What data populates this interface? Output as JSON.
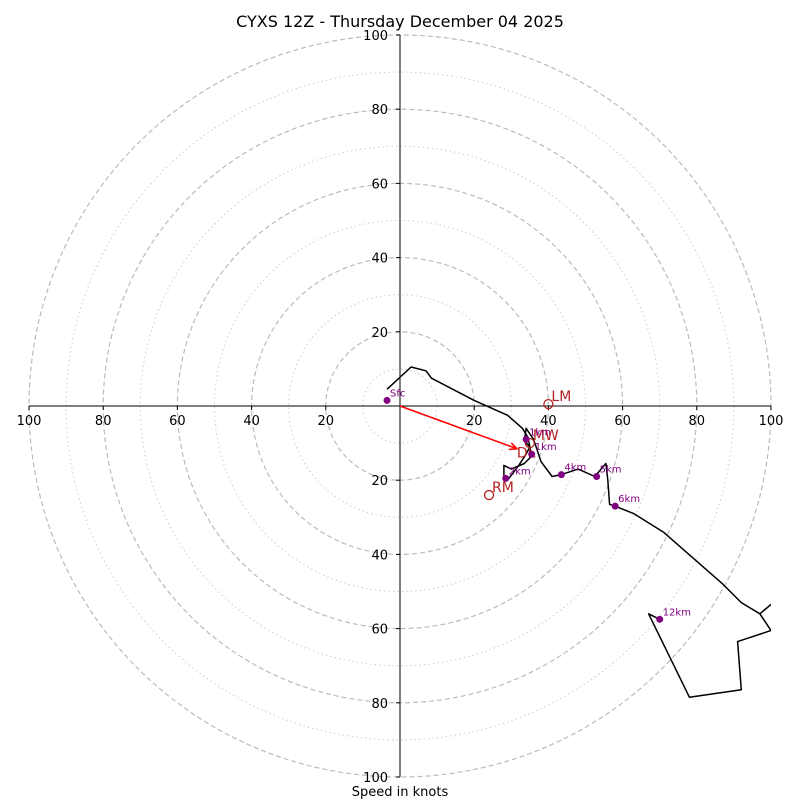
{
  "chart_data": {
    "type": "hodograph",
    "title": "CYXS 12Z - Thursday December 04 2025",
    "xlabel": "Speed in knots",
    "ring_speeds_major": [
      20,
      40,
      60,
      80,
      100
    ],
    "ring_speeds_minor": [
      10,
      30,
      50,
      70,
      90
    ],
    "x_tick_labels": [
      "100",
      "80",
      "60",
      "40",
      "20",
      "20",
      "40",
      "60",
      "80",
      "100"
    ],
    "x_tick_values": [
      -100,
      -80,
      -60,
      -40,
      -20,
      20,
      40,
      60,
      80,
      100
    ],
    "y_tick_labels": [
      "100",
      "80",
      "60",
      "40",
      "20",
      "20",
      "40",
      "60",
      "80",
      "100"
    ],
    "y_tick_values": [
      100,
      80,
      60,
      40,
      20,
      -20,
      -40,
      -60,
      -80,
      -100
    ],
    "range": [
      -100,
      100
    ],
    "hodograph_trace": [
      [
        -3.5,
        4.5
      ],
      [
        3,
        10.5
      ],
      [
        7,
        9.5
      ],
      [
        8.5,
        7.5
      ],
      [
        20,
        1.5
      ],
      [
        29,
        -2.5
      ],
      [
        33,
        -6
      ],
      [
        34.5,
        -8.5
      ],
      [
        35.5,
        -13.5
      ],
      [
        33.5,
        -15.5
      ],
      [
        30,
        -17
      ],
      [
        28,
        -16
      ],
      [
        28,
        -19.5
      ],
      [
        29,
        -20
      ],
      [
        32,
        -16
      ],
      [
        34,
        -13
      ],
      [
        35,
        -11
      ],
      [
        33.5,
        -9.5
      ],
      [
        34,
        -6
      ],
      [
        36,
        -9
      ],
      [
        38,
        -15
      ],
      [
        41,
        -19
      ],
      [
        43.5,
        -18.5
      ],
      [
        48,
        -17
      ],
      [
        52.5,
        -19
      ],
      [
        55.5,
        -15.5
      ],
      [
        56,
        -20
      ],
      [
        56.5,
        -26.5
      ],
      [
        58,
        -27
      ],
      [
        63,
        -29
      ],
      [
        71,
        -34
      ],
      [
        87,
        -48
      ],
      [
        92,
        -53
      ],
      [
        97,
        -56
      ],
      [
        100,
        -53.5
      ],
      [
        97,
        -56
      ],
      [
        100,
        -60.5
      ],
      [
        91,
        -63.5
      ],
      [
        92,
        -76.5
      ],
      [
        78,
        -78.5
      ],
      [
        67,
        -56
      ],
      [
        70,
        -57.5
      ]
    ],
    "height_markers": [
      {
        "label": "Sfc",
        "u": -3.5,
        "v": 1.5
      },
      {
        "label": "1km",
        "u": 34,
        "v": -9
      },
      {
        "label": "1km",
        "u": 35.5,
        "v": -13
      },
      {
        "label": "2km",
        "u": 28.5,
        "v": -19.5
      },
      {
        "label": "4km",
        "u": 43.5,
        "v": -18.5
      },
      {
        "label": "5km",
        "u": 53,
        "v": -19
      },
      {
        "label": "6km",
        "u": 58,
        "v": -27
      },
      {
        "label": "12km",
        "u": 70,
        "v": -57.5
      }
    ],
    "storm_motion": [
      {
        "label": "LM",
        "u": 40,
        "v": 0.5
      },
      {
        "label": "RM",
        "u": 24,
        "v": -24
      },
      {
        "label": "MW",
        "u": 35,
        "v": -10
      }
    ],
    "mean_wind_vector": {
      "label": "DL",
      "u": 31.5,
      "v": -11.5
    },
    "colors": {
      "trace": "#000000",
      "marker": "#800080",
      "storm": "#b22222",
      "vector": "#ff0000",
      "major_ring": "#bbbbbb",
      "minor_ring": "#cccccc"
    }
  }
}
